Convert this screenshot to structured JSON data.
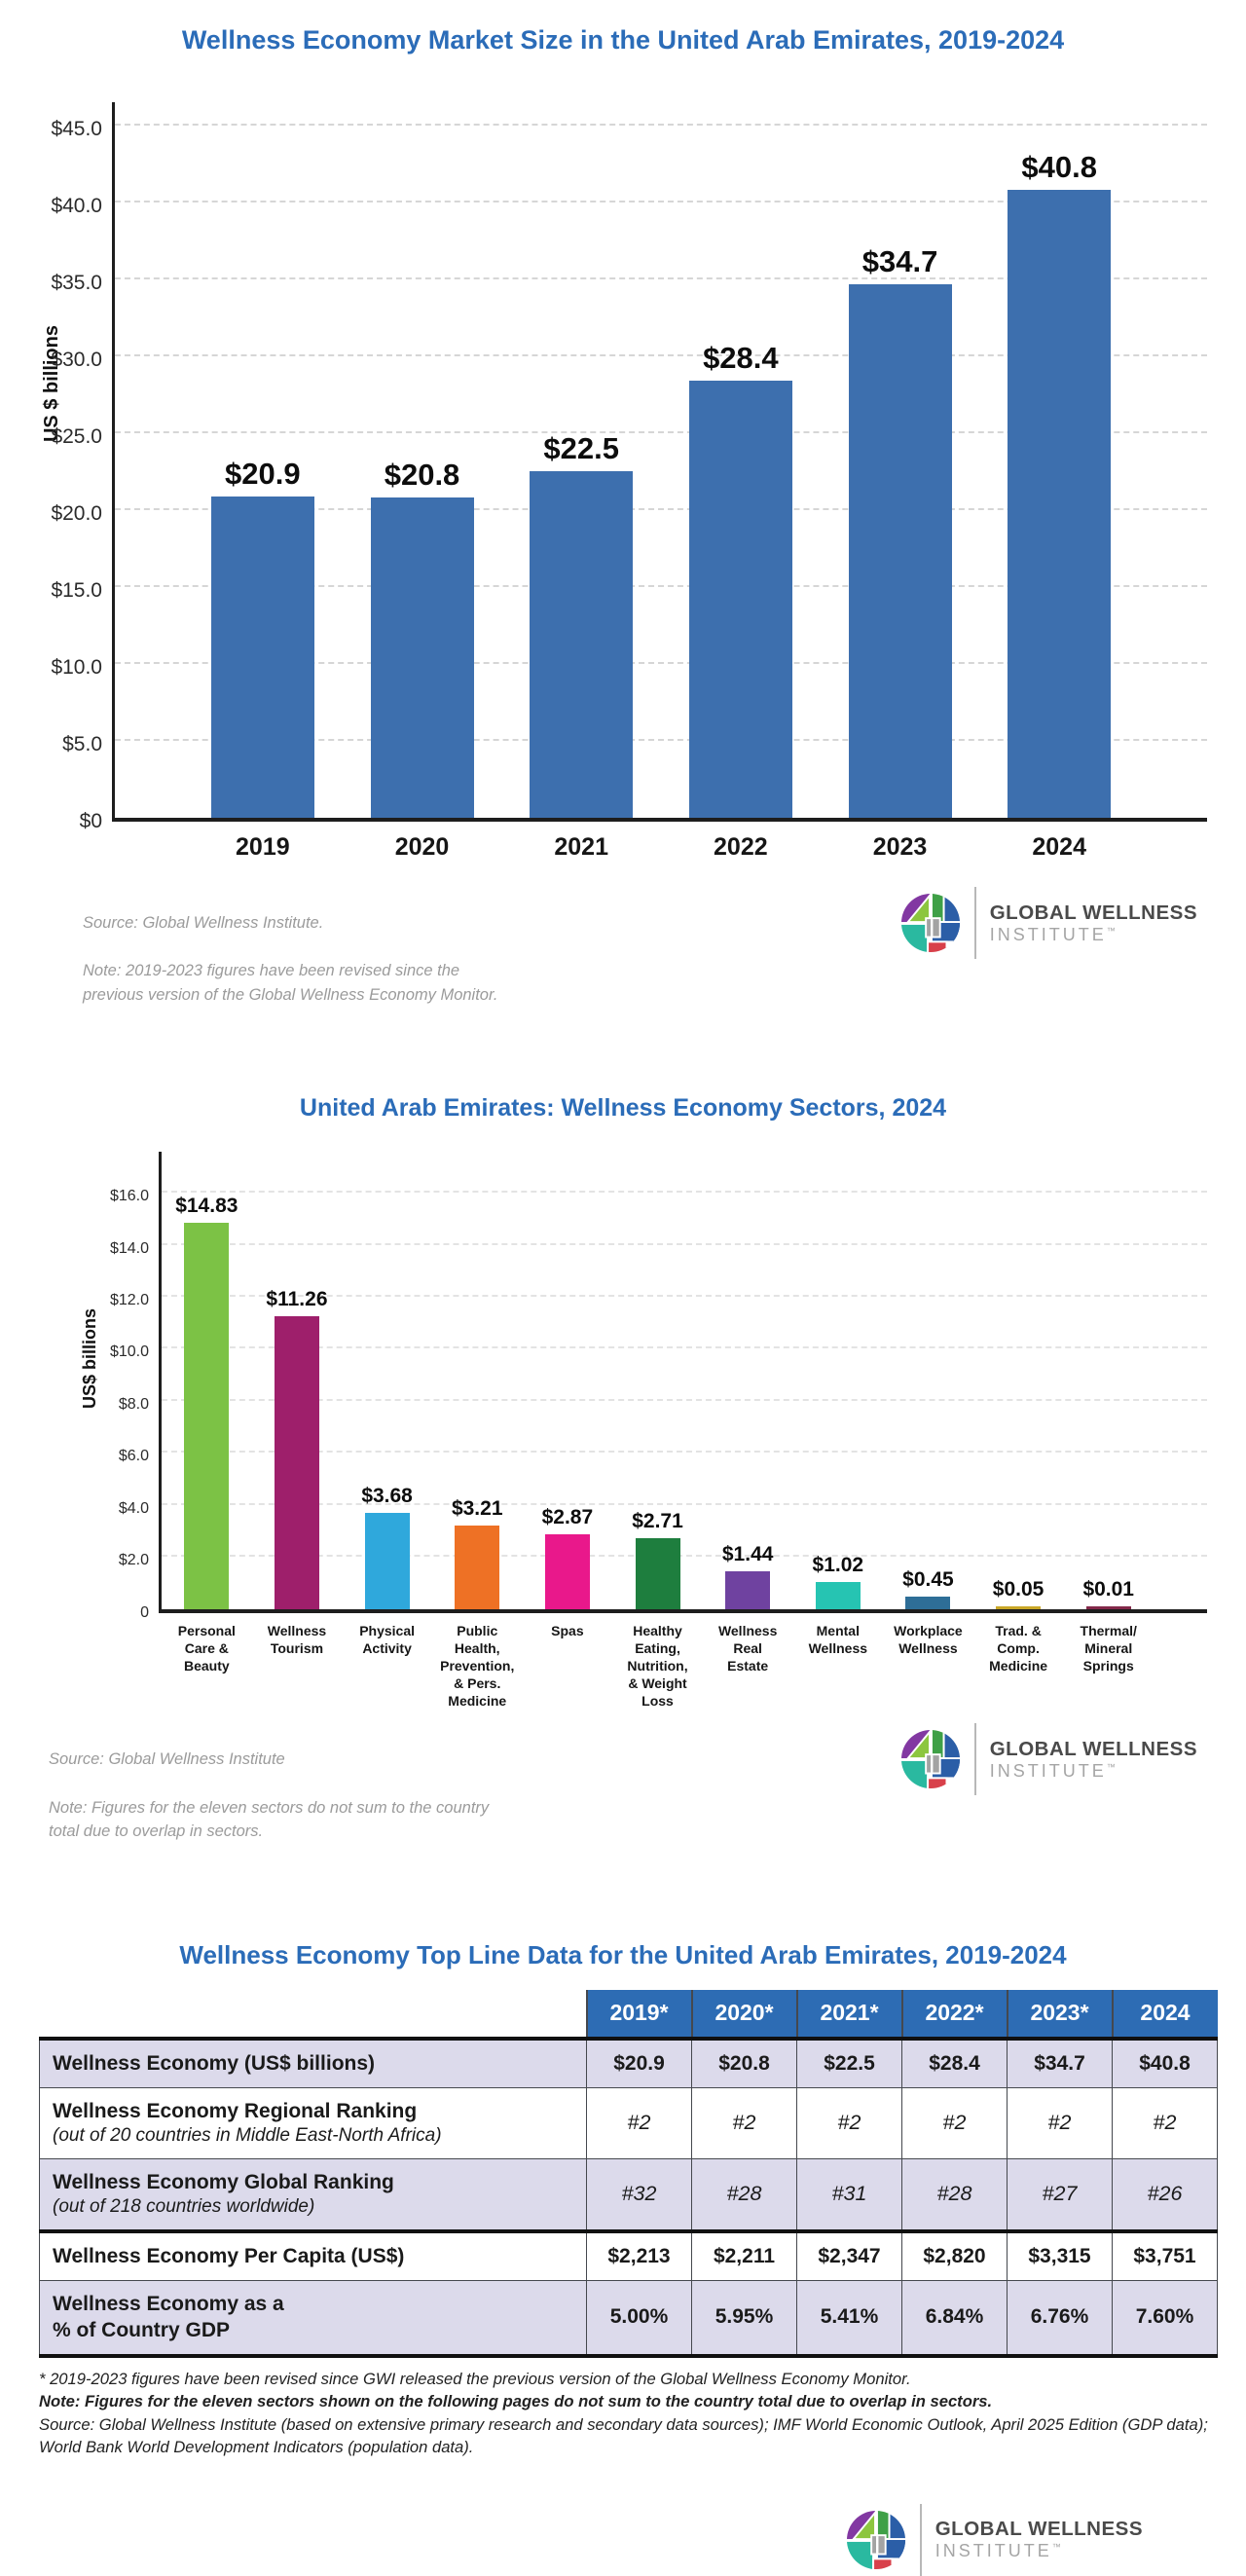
{
  "logo": {
    "line1": "GLOBAL WELLNESS",
    "line2": "INSTITUTE",
    "tm": "™"
  },
  "colors": {
    "title_blue": "#2b6cb8",
    "bar_blue": "#3d6fae",
    "table_header_blue": "#2d6cb4",
    "row_lavender": "#dcdaeb",
    "source_gray": "#9b9b9b"
  },
  "chart_data": [
    {
      "type": "bar",
      "title": "Wellness Economy Market Size in the United Arab Emirates, 2019-2024",
      "ylabel": "US $ billions",
      "categories": [
        "2019",
        "2020",
        "2021",
        "2022",
        "2023",
        "2024"
      ],
      "values": [
        20.9,
        20.8,
        22.5,
        28.4,
        34.7,
        40.8
      ],
      "labels": [
        "$20.9",
        "$20.8",
        "$22.5",
        "$28.4",
        "$34.7",
        "$40.8"
      ],
      "bar_color": "#3d6fae",
      "ylim": [
        0,
        46.5
      ],
      "grid": "dashed",
      "legend": "none",
      "yticks": [
        {
          "v": 45,
          "t": "$45.0"
        },
        {
          "v": 40,
          "t": "$40.0"
        },
        {
          "v": 35,
          "t": "$35.0"
        },
        {
          "v": 30,
          "t": "$30.0"
        },
        {
          "v": 25,
          "t": "$25.0"
        },
        {
          "v": 20,
          "t": "$20.0"
        },
        {
          "v": 15,
          "t": "$15.0"
        },
        {
          "v": 10,
          "t": "$10.0"
        },
        {
          "v": 5,
          "t": "$5.0"
        },
        {
          "v": 0,
          "t": "$0"
        }
      ],
      "source": "Source: Global Wellness Institute.",
      "note": "Note: 2019-2023 figures have been revised since the\nprevious version of the Global Wellness Economy Monitor."
    },
    {
      "type": "bar",
      "title": "United Arab Emirates: Wellness Economy Sectors, 2024",
      "ylabel": "US$ billions",
      "categories": [
        "Personal\nCare &\nBeauty",
        "Wellness\nTourism",
        "Physical\nActivity",
        "Public\nHealth,\nPrevention,\n& Pers.\nMedicine",
        "Spas",
        "Healthy\nEating,\nNutrition,\n& Weight\nLoss",
        "Wellness\nReal\nEstate",
        "Mental\nWellness",
        "Workplace\nWellness",
        "Trad. &\nComp.\nMedicine",
        "Thermal/\nMineral\nSprings"
      ],
      "values": [
        14.83,
        11.26,
        3.68,
        3.21,
        2.87,
        2.71,
        1.44,
        1.02,
        0.45,
        0.05,
        0.01
      ],
      "labels": [
        "$14.83",
        "$11.26",
        "$3.68",
        "$3.21",
        "$2.87",
        "$2.71",
        "$1.44",
        "$1.02",
        "$0.45",
        "$0.05",
        "$0.01"
      ],
      "colors": [
        "#7cc245",
        "#9e1f6b",
        "#2fa8dc",
        "#ee7125",
        "#e9188b",
        "#1e7e3e",
        "#6f42a0",
        "#26c4b2",
        "#2e6e97",
        "#c9a727",
        "#83294a"
      ],
      "ylim": [
        0,
        17.6
      ],
      "grid": "dashed",
      "legend": "none",
      "yticks": [
        {
          "v": 16,
          "t": "$16.0"
        },
        {
          "v": 14,
          "t": "$14.0"
        },
        {
          "v": 12,
          "t": "$12.0"
        },
        {
          "v": 10,
          "t": "$10.0"
        },
        {
          "v": 8,
          "t": "$8.0"
        },
        {
          "v": 6,
          "t": "$6.0"
        },
        {
          "v": 4,
          "t": "$4.0"
        },
        {
          "v": 2,
          "t": "$2.0"
        },
        {
          "v": 0,
          "t": "0"
        }
      ],
      "source": "Source: Global Wellness Institute",
      "note": "Note: Figures for the eleven sectors do not sum to the country\ntotal due to overlap in sectors."
    },
    {
      "type": "table",
      "title": "Wellness Economy Top Line Data for the United Arab Emirates, 2019-2024",
      "columns": [
        "2019*",
        "2020*",
        "2021*",
        "2022*",
        "2023*",
        "2024"
      ],
      "rows": [
        {
          "label": "Wellness Economy (US$ billions)",
          "sublabel": "",
          "values": [
            "$20.9",
            "$20.8",
            "$22.5",
            "$28.4",
            "$34.7",
            "$40.8"
          ],
          "value_style": "bold"
        },
        {
          "label": "Wellness Economy Regional Ranking",
          "sublabel": "(out of 20 countries in Middle East-North Africa)",
          "values": [
            "#2",
            "#2",
            "#2",
            "#2",
            "#2",
            "#2"
          ],
          "value_style": "italic"
        },
        {
          "label": "Wellness Economy Global Ranking",
          "sublabel": "(out of 218 countries worldwide)",
          "values": [
            "#32",
            "#28",
            "#31",
            "#28",
            "#27",
            "#26"
          ],
          "value_style": "italic"
        },
        {
          "label": "Wellness Economy Per Capita (US$)",
          "sublabel": "",
          "values": [
            "$2,213",
            "$2,211",
            "$2,347",
            "$2,820",
            "$3,315",
            "$3,751"
          ],
          "value_style": "bold"
        },
        {
          "label": "Wellness Economy as a\n% of Country GDP",
          "sublabel": "",
          "values": [
            "5.00%",
            "5.95%",
            "5.41%",
            "6.84%",
            "6.76%",
            "7.60%"
          ],
          "value_style": "bold"
        }
      ],
      "footnotes": [
        {
          "text": "* 2019-2023 figures have been revised since GWI released the previous version of the Global Wellness Economy Monitor.",
          "bold": false
        },
        {
          "text": "Note: Figures for the eleven sectors shown on the following pages do not sum to the country total due to overlap in sectors.",
          "bold": true
        },
        {
          "text": "Source: Global Wellness Institute (based on extensive primary research and secondary data sources); IMF World Economic Outlook, April 2025 Edition (GDP data); World Bank World Development Indicators (population data).",
          "bold": false
        }
      ]
    }
  ]
}
